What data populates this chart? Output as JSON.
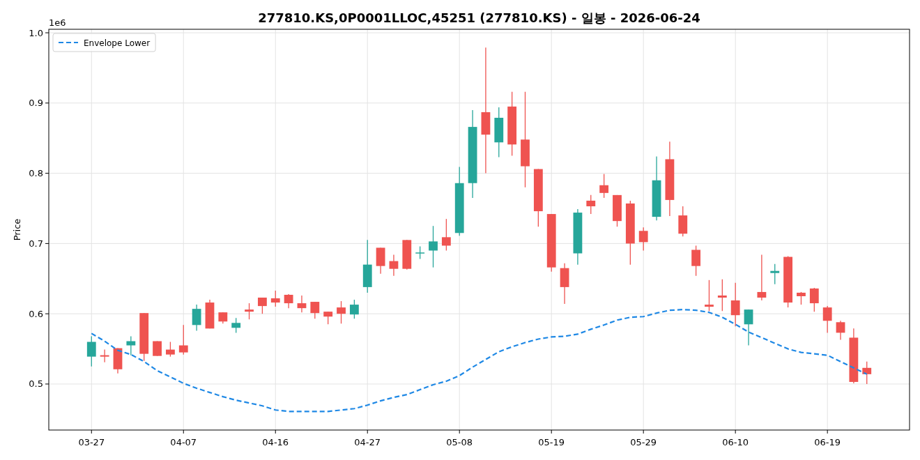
{
  "chart_data": {
    "type": "candlestick",
    "title": "277810.KS,0P0001LLOC,45251 (277810.KS) - 일봉 - 2026-06-24",
    "ylabel": "Price",
    "categories": [
      "03-27",
      null,
      null,
      null,
      null,
      null,
      null,
      "04-07",
      null,
      null,
      null,
      null,
      null,
      null,
      "04-16",
      null,
      null,
      null,
      null,
      null,
      null,
      "04-27",
      null,
      null,
      null,
      null,
      null,
      null,
      "05-08",
      null,
      null,
      null,
      null,
      null,
      null,
      "05-19",
      null,
      null,
      null,
      null,
      null,
      null,
      "05-29",
      null,
      null,
      null,
      null,
      null,
      null,
      "06-10",
      null,
      null,
      null,
      null,
      null,
      null,
      "06-19",
      null,
      null,
      null
    ],
    "ohlc": [
      [
        0.539,
        0.568,
        0.525,
        0.56
      ],
      [
        0.541,
        0.549,
        0.531,
        0.539
      ],
      [
        0.551,
        0.551,
        0.515,
        0.521
      ],
      [
        0.555,
        0.568,
        0.541,
        0.561
      ],
      [
        0.601,
        0.601,
        0.533,
        0.543
      ],
      [
        0.561,
        0.561,
        0.54,
        0.54
      ],
      [
        0.549,
        0.56,
        0.539,
        0.542
      ],
      [
        0.555,
        0.584,
        0.542,
        0.545
      ],
      [
        0.584,
        0.613,
        0.576,
        0.607
      ],
      [
        0.616,
        0.62,
        0.579,
        0.579
      ],
      [
        0.602,
        0.602,
        0.586,
        0.589
      ],
      [
        0.58,
        0.594,
        0.573,
        0.587
      ],
      [
        0.606,
        0.615,
        0.592,
        0.603
      ],
      [
        0.623,
        0.623,
        0.6,
        0.611
      ],
      [
        0.622,
        0.633,
        0.61,
        0.616
      ],
      [
        0.627,
        0.628,
        0.608,
        0.615
      ],
      [
        0.615,
        0.626,
        0.602,
        0.608
      ],
      [
        0.617,
        0.617,
        0.593,
        0.601
      ],
      [
        0.603,
        0.603,
        0.585,
        0.596
      ],
      [
        0.609,
        0.618,
        0.586,
        0.6
      ],
      [
        0.599,
        0.62,
        0.593,
        0.613
      ],
      [
        0.638,
        0.705,
        0.63,
        0.67
      ],
      [
        0.694,
        0.694,
        0.657,
        0.668
      ],
      [
        0.675,
        0.684,
        0.654,
        0.664
      ],
      [
        0.705,
        0.705,
        0.663,
        0.664
      ],
      [
        0.686,
        0.696,
        0.678,
        0.687
      ],
      [
        0.69,
        0.725,
        0.666,
        0.703
      ],
      [
        0.709,
        0.735,
        0.69,
        0.697
      ],
      [
        0.715,
        0.809,
        0.711,
        0.786
      ],
      [
        0.786,
        0.89,
        0.765,
        0.866
      ],
      [
        0.887,
        0.979,
        0.8,
        0.855
      ],
      [
        0.844,
        0.894,
        0.823,
        0.879
      ],
      [
        0.895,
        0.916,
        0.825,
        0.841
      ],
      [
        0.848,
        0.916,
        0.78,
        0.81
      ],
      [
        0.806,
        0.806,
        0.724,
        0.746
      ],
      [
        0.742,
        0.742,
        0.66,
        0.666
      ],
      [
        0.665,
        0.672,
        0.614,
        0.638
      ],
      [
        0.686,
        0.749,
        0.67,
        0.744
      ],
      [
        0.761,
        0.769,
        0.742,
        0.753
      ],
      [
        0.783,
        0.799,
        0.765,
        0.772
      ],
      [
        0.769,
        0.769,
        0.724,
        0.732
      ],
      [
        0.757,
        0.761,
        0.67,
        0.7
      ],
      [
        0.718,
        0.723,
        0.69,
        0.702
      ],
      [
        0.738,
        0.824,
        0.733,
        0.79
      ],
      [
        0.82,
        0.845,
        0.739,
        0.762
      ],
      [
        0.74,
        0.753,
        0.71,
        0.714
      ],
      [
        0.691,
        0.697,
        0.654,
        0.668
      ],
      [
        0.613,
        0.648,
        0.604,
        0.61
      ],
      [
        0.626,
        0.649,
        0.604,
        0.623
      ],
      [
        0.619,
        0.644,
        0.582,
        0.598
      ],
      [
        0.585,
        0.606,
        0.555,
        0.606
      ],
      [
        0.631,
        0.684,
        0.619,
        0.623
      ],
      [
        0.658,
        0.671,
        0.642,
        0.661
      ],
      [
        0.681,
        0.682,
        0.609,
        0.616
      ],
      [
        0.63,
        0.631,
        0.613,
        0.625
      ],
      [
        0.636,
        0.637,
        0.603,
        0.615
      ],
      [
        0.609,
        0.611,
        0.573,
        0.59
      ],
      [
        0.588,
        0.59,
        0.563,
        0.573
      ],
      [
        0.566,
        0.579,
        0.501,
        0.503
      ],
      [
        0.523,
        0.532,
        0.5,
        0.514
      ]
    ],
    "colors": [
      "#26a69a",
      "#ef5350",
      "#ef5350",
      "#26a69a",
      "#ef5350",
      "#ef5350",
      "#ef5350",
      "#ef5350",
      "#26a69a",
      "#ef5350",
      "#ef5350",
      "#26a69a",
      "#ef5350",
      "#ef5350",
      "#ef5350",
      "#ef5350",
      "#ef5350",
      "#ef5350",
      "#ef5350",
      "#ef5350",
      "#26a69a",
      "#26a69a",
      "#ef5350",
      "#ef5350",
      "#ef5350",
      "#26a69a",
      "#26a69a",
      "#ef5350",
      "#26a69a",
      "#26a69a",
      "#ef5350",
      "#26a69a",
      "#ef5350",
      "#ef5350",
      "#ef5350",
      "#ef5350",
      "#ef5350",
      "#26a69a",
      "#ef5350",
      "#ef5350",
      "#ef5350",
      "#ef5350",
      "#ef5350",
      "#26a69a",
      "#ef5350",
      "#ef5350",
      "#ef5350",
      "#ef5350",
      "#ef5350",
      "#ef5350",
      "#26a69a",
      "#ef5350",
      "#26a69a",
      "#ef5350",
      "#ef5350",
      "#ef5350",
      "#ef5350",
      "#ef5350",
      "#ef5350",
      "#ef5350"
    ],
    "series": [
      {
        "name": "Envelope Lower",
        "type": "line",
        "color": "#1e88e5",
        "line_style": "dashed",
        "values": [
          0.572,
          0.561,
          0.548,
          0.542,
          0.532,
          0.519,
          0.51,
          0.501,
          0.494,
          0.488,
          0.482,
          0.477,
          0.473,
          0.469,
          0.463,
          0.461,
          0.461,
          0.461,
          0.461,
          0.463,
          0.465,
          0.47,
          0.476,
          0.481,
          0.485,
          0.492,
          0.499,
          0.504,
          0.512,
          0.524,
          0.535,
          0.546,
          0.553,
          0.559,
          0.564,
          0.567,
          0.568,
          0.571,
          0.578,
          0.584,
          0.591,
          0.595,
          0.596,
          0.601,
          0.605,
          0.606,
          0.605,
          0.602,
          0.595,
          0.585,
          0.574,
          0.566,
          0.558,
          0.55,
          0.545,
          0.543,
          0.541,
          0.532,
          0.523,
          0.514
        ]
      }
    ],
    "ylim": [
      0.4345,
      1.005
    ],
    "yticks": [
      0.5,
      0.6,
      0.7,
      0.8,
      0.9,
      {
        "value": 1,
        "label": "1.0"
      }
    ],
    "annotations": [
      "1e6"
    ],
    "grid": true,
    "legend": "top left"
  }
}
